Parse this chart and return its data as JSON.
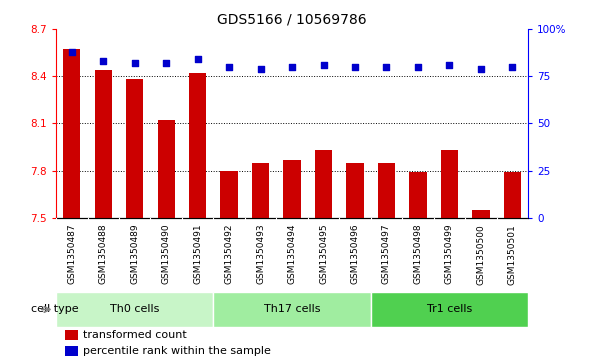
{
  "title": "GDS5166 / 10569786",
  "samples": [
    "GSM1350487",
    "GSM1350488",
    "GSM1350489",
    "GSM1350490",
    "GSM1350491",
    "GSM1350492",
    "GSM1350493",
    "GSM1350494",
    "GSM1350495",
    "GSM1350496",
    "GSM1350497",
    "GSM1350498",
    "GSM1350499",
    "GSM1350500",
    "GSM1350501"
  ],
  "transformed_count": [
    8.57,
    8.44,
    8.38,
    8.12,
    8.42,
    7.8,
    7.85,
    7.87,
    7.93,
    7.85,
    7.85,
    7.79,
    7.93,
    7.55,
    7.79
  ],
  "percentile_rank": [
    88,
    83,
    82,
    82,
    84,
    80,
    79,
    80,
    81,
    80,
    80,
    80,
    81,
    79,
    80
  ],
  "cell_groups": [
    {
      "label": "Th0 cells",
      "start": 0,
      "end": 5,
      "color": "#c8f5c8"
    },
    {
      "label": "Th17 cells",
      "start": 5,
      "end": 10,
      "color": "#a0eda0"
    },
    {
      "label": "Tr1 cells",
      "start": 10,
      "end": 15,
      "color": "#50d050"
    }
  ],
  "ylim_left": [
    7.5,
    8.7
  ],
  "ylim_right": [
    0,
    100
  ],
  "bar_color": "#cc0000",
  "dot_color": "#0000cc",
  "bg_color": "#d3d3d3",
  "plot_bg_color": "#ffffff",
  "cell_type_label": "cell type",
  "legend_bar": "transformed count",
  "legend_dot": "percentile rank within the sample",
  "title_fontsize": 10,
  "tick_fontsize": 7.5,
  "label_fontsize": 8,
  "small_fontsize": 6.5
}
